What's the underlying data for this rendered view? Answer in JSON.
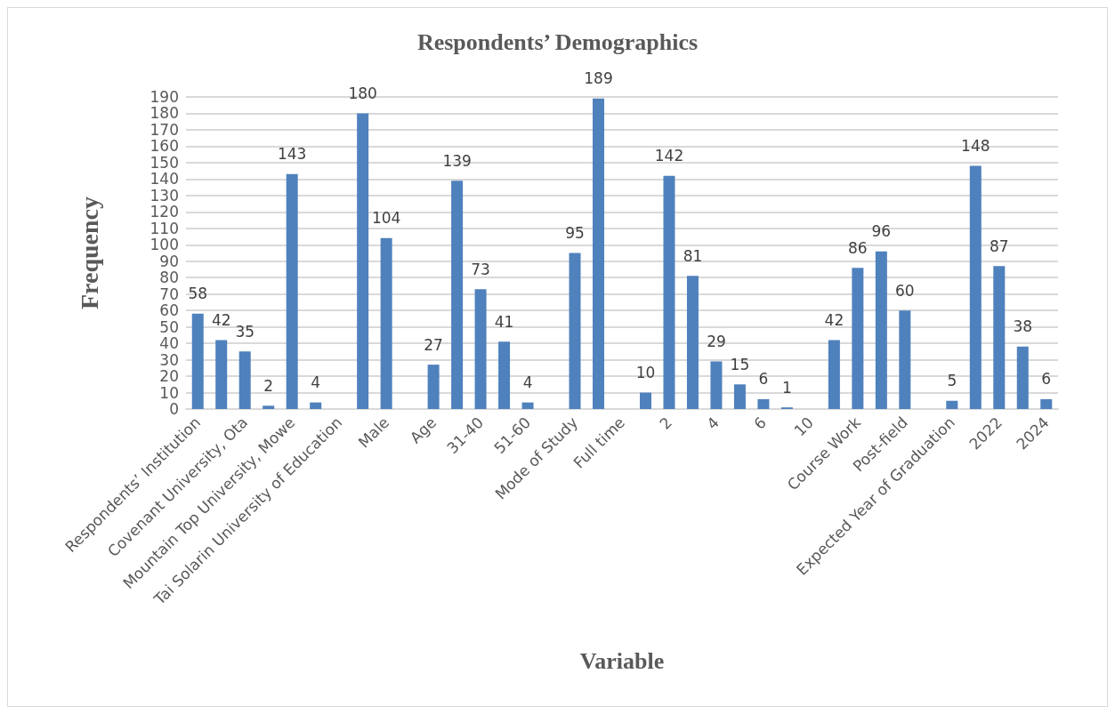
{
  "chart_data": {
    "type": "bar",
    "title": "Respondents’ Demographics",
    "xlabel": "Variable",
    "ylabel": "Frequency",
    "categories": [
      "Respondents’ Institution",
      null,
      "Covenant University, Ota",
      null,
      "Mountain Top University, Mowe",
      null,
      "Tai Solarin University of Education",
      null,
      "Male",
      null,
      "Age",
      null,
      "31-40",
      null,
      "51-60",
      null,
      "Mode of Study",
      null,
      "Full time",
      null,
      "2",
      null,
      "4",
      null,
      "6",
      null,
      "10",
      null,
      "Course Work",
      null,
      "Post-field",
      null,
      "Expected Year of Graduation",
      null,
      "2022",
      null,
      "2024"
    ],
    "values": [
      58,
      42,
      35,
      2,
      143,
      4,
      null,
      180,
      104,
      null,
      27,
      139,
      73,
      41,
      4,
      null,
      95,
      189,
      null,
      10,
      142,
      81,
      29,
      15,
      6,
      1,
      null,
      42,
      86,
      96,
      60,
      null,
      5,
      148,
      87,
      38,
      6
    ],
    "color": "#4f81bd",
    "ylim": [
      0,
      190
    ],
    "yticks": [
      0,
      10,
      20,
      30,
      40,
      50,
      60,
      70,
      80,
      90,
      100,
      110,
      120,
      130,
      140,
      150,
      160,
      170,
      180,
      190
    ],
    "grid": true,
    "data_labels": true
  }
}
